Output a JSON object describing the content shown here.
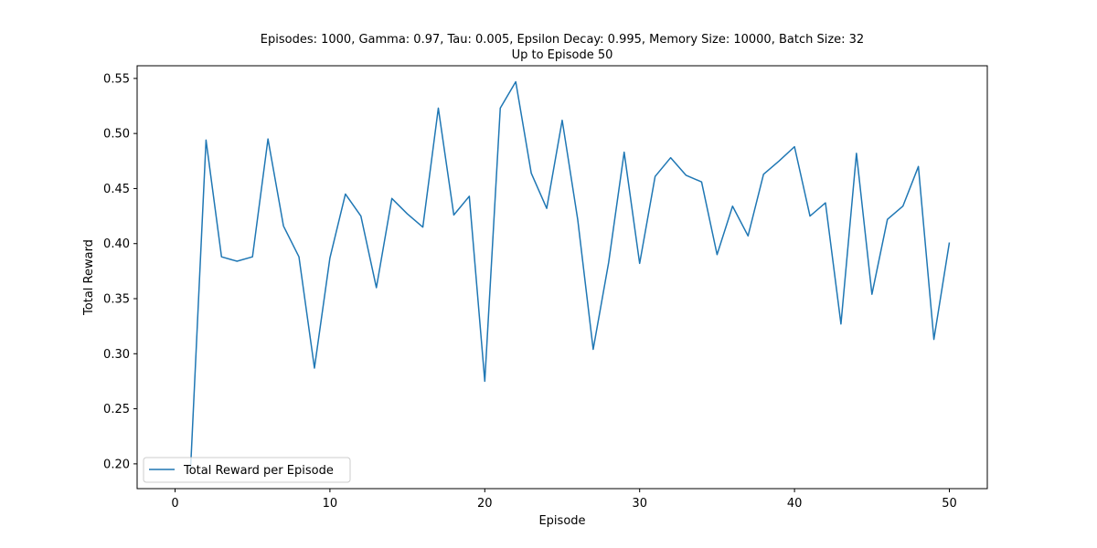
{
  "chart_data": {
    "type": "line",
    "title": "Episodes: 1000, Gamma: 0.97, Tau: 0.005, Epsilon Decay: 0.995, Memory Size: 10000, Batch Size: 32",
    "subtitle": "Up to Episode 50",
    "xlabel": "Episode",
    "ylabel": "Total Reward",
    "xlim": [
      -2.45,
      52.45
    ],
    "ylim": [
      0.1775,
      0.5615
    ],
    "xticks": [
      0,
      10,
      20,
      30,
      40,
      50
    ],
    "xtick_labels": [
      "0",
      "10",
      "20",
      "30",
      "40",
      "50"
    ],
    "yticks": [
      0.2,
      0.25,
      0.3,
      0.35,
      0.4,
      0.45,
      0.5,
      0.55
    ],
    "ytick_labels": [
      "0.20",
      "0.25",
      "0.30",
      "0.35",
      "0.40",
      "0.45",
      "0.50",
      "0.55"
    ],
    "grid": false,
    "legend_position": "lower-left",
    "color": "#1f77b4",
    "series": [
      {
        "name": "Total Reward per Episode",
        "x": [
          1,
          2,
          3,
          4,
          5,
          6,
          7,
          8,
          9,
          10,
          11,
          12,
          13,
          14,
          15,
          16,
          17,
          18,
          19,
          20,
          21,
          22,
          23,
          24,
          25,
          26,
          27,
          28,
          29,
          30,
          31,
          32,
          33,
          34,
          35,
          36,
          37,
          38,
          39,
          40,
          41,
          42,
          43,
          44,
          45,
          46,
          47,
          48,
          49,
          50
        ],
        "values": [
          0.195,
          0.494,
          0.388,
          0.384,
          0.388,
          0.495,
          0.416,
          0.388,
          0.287,
          0.387,
          0.445,
          0.425,
          0.36,
          0.441,
          0.427,
          0.415,
          0.523,
          0.426,
          0.443,
          0.275,
          0.523,
          0.547,
          0.464,
          0.432,
          0.512,
          0.422,
          0.304,
          0.383,
          0.483,
          0.382,
          0.461,
          0.478,
          0.462,
          0.456,
          0.39,
          0.434,
          0.407,
          0.463,
          0.475,
          0.488,
          0.425,
          0.437,
          0.327,
          0.482,
          0.354,
          0.422,
          0.434,
          0.47,
          0.313,
          0.401
        ]
      }
    ]
  }
}
